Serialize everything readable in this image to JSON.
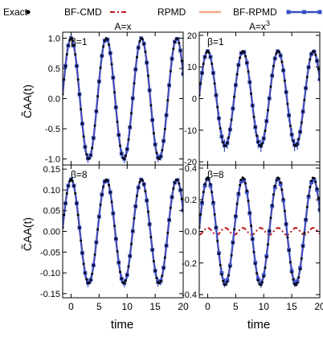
{
  "legend": {
    "items": [
      {
        "label": "Exact",
        "style": "dots",
        "color": "#000000"
      },
      {
        "label": "BF-CMD",
        "style": "dashdot",
        "color": "#c0151a"
      },
      {
        "label": "RPMD",
        "style": "line",
        "color": "#f2a988"
      },
      {
        "label": "BF-RPMD",
        "style": "line-errorbar-markers",
        "color": "#3b4fc4"
      }
    ]
  },
  "y_axis_label": "C̃AA(t)",
  "x_axis_label": "time",
  "chart_data": [
    {
      "type": "line",
      "panel": "top-left",
      "title": "A=x",
      "annotation": "β=1",
      "xlim": [
        -1.5,
        20
      ],
      "ylim": [
        -1.1,
        1.1
      ],
      "xticks": [
        0,
        5,
        10,
        15,
        20
      ],
      "yticks": [
        1.0,
        0.5,
        0.0,
        -0.5,
        -1.0
      ],
      "ytick_labels": [
        "1.0",
        "0.5",
        "0.0",
        "-0.5",
        "-1.0"
      ],
      "series": [
        {
          "name": "Exact",
          "amplitude": 1.0,
          "omega": 1.0,
          "offset": 0.0
        },
        {
          "name": "BF-CMD",
          "amplitude": 1.0,
          "omega": 1.0,
          "offset": 0.0
        },
        {
          "name": "RPMD",
          "amplitude": 1.0,
          "omega": 1.0,
          "offset": 0.0
        },
        {
          "name": "BF-RPMD",
          "amplitude": 1.0,
          "omega": 1.0,
          "offset": 0.0
        }
      ]
    },
    {
      "type": "line",
      "panel": "top-right",
      "title": "A=x3",
      "annotation": "β=1",
      "xlim": [
        -1.5,
        20
      ],
      "ylim": [
        -21,
        21
      ],
      "xticks": [
        0,
        5,
        10,
        15,
        20
      ],
      "yticks": [
        20,
        10,
        0,
        -10,
        -20
      ],
      "ytick_labels": [
        "20",
        "10",
        "0",
        "-10",
        "-20"
      ],
      "series": [
        {
          "name": "Exact",
          "amplitude": 15.0,
          "omega": 1.0,
          "offset": 0.0
        },
        {
          "name": "BF-CMD",
          "amplitude": 15.0,
          "omega": 1.0,
          "offset": 0.0
        },
        {
          "name": "RPMD",
          "amplitude": 15.0,
          "omega": 1.0,
          "offset": 0.0
        },
        {
          "name": "BF-RPMD",
          "amplitude": 15.0,
          "omega": 1.0,
          "offset": 0.0
        }
      ]
    },
    {
      "type": "line",
      "panel": "bottom-left",
      "title": "",
      "annotation": "β=8",
      "xlim": [
        -1.5,
        20
      ],
      "ylim": [
        -0.16,
        0.16
      ],
      "xticks": [
        0,
        5,
        10,
        15,
        20
      ],
      "yticks": [
        0.15,
        0.1,
        0.05,
        0.0,
        -0.05,
        -0.1,
        -0.15
      ],
      "ytick_labels": [
        "0.15",
        "0.10",
        "0.05",
        "0.00",
        "-0.05",
        "-0.10",
        "-0.15"
      ],
      "series": [
        {
          "name": "Exact",
          "amplitude": 0.125,
          "omega": 1.0,
          "offset": 0.0
        },
        {
          "name": "BF-CMD",
          "amplitude": 0.125,
          "omega": 1.0,
          "offset": 0.0
        },
        {
          "name": "RPMD",
          "amplitude": 0.125,
          "omega": 1.0,
          "offset": 0.0
        },
        {
          "name": "BF-RPMD",
          "amplitude": 0.125,
          "omega": 1.0,
          "offset": 0.0
        }
      ]
    },
    {
      "type": "line",
      "panel": "bottom-right",
      "title": "",
      "annotation": "β=8",
      "xlim": [
        -1.5,
        20
      ],
      "ylim": [
        -0.42,
        0.42
      ],
      "xticks": [
        0,
        5,
        10,
        15,
        20
      ],
      "yticks": [
        0.4,
        0.2,
        0.0,
        -0.2,
        -0.4
      ],
      "ytick_labels": [
        "0.4",
        "0.2",
        "0.0",
        "-0.2",
        "-0.4"
      ],
      "series": [
        {
          "name": "Exact",
          "amplitude": 0.34,
          "omega": 1.0,
          "offset": 0.0
        },
        {
          "name": "BF-CMD",
          "amplitude": 0.022,
          "omega": 2.0,
          "offset": 0.0
        },
        {
          "name": "RPMD",
          "amplitude": 0.33,
          "omega": 1.0,
          "offset": 0.0
        },
        {
          "name": "BF-RPMD",
          "amplitude": 0.33,
          "omega": 1.0,
          "offset": 0.0
        }
      ]
    }
  ]
}
